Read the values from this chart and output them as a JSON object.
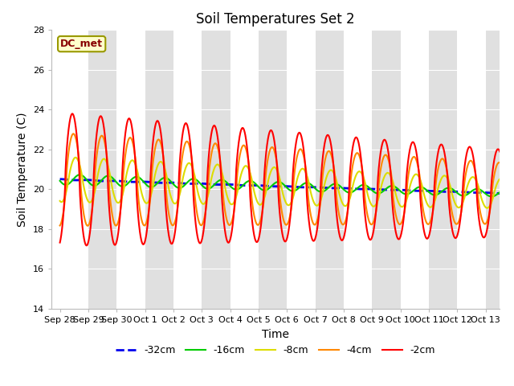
{
  "title": "Soil Temperatures Set 2",
  "xlabel": "Time",
  "ylabel": "Soil Temperature (C)",
  "ylim": [
    14,
    28
  ],
  "background_color": "#ffffff",
  "tick_labels": [
    "Sep 28",
    "Sep 29",
    "Sep 30",
    "Oct 1",
    "Oct 2",
    "Oct 3",
    "Oct 4",
    "Oct 5",
    "Oct 6",
    "Oct 7",
    "Oct 8",
    "Oct 9",
    "Oct 10",
    "Oct 11",
    "Oct 12",
    "Oct 13"
  ],
  "tick_positions": [
    0,
    1,
    2,
    3,
    4,
    5,
    6,
    7,
    8,
    9,
    10,
    11,
    12,
    13,
    14,
    15
  ],
  "series": [
    {
      "label": "-32cm",
      "color": "#0000ee",
      "linestyle": "--",
      "linewidth": 2.0,
      "depth": 32
    },
    {
      "label": "-16cm",
      "color": "#00cc00",
      "linestyle": "-",
      "linewidth": 1.5,
      "depth": 16
    },
    {
      "label": "-8cm",
      "color": "#dddd00",
      "linestyle": "-",
      "linewidth": 1.5,
      "depth": 8
    },
    {
      "label": "-4cm",
      "color": "#ff8800",
      "linestyle": "-",
      "linewidth": 1.5,
      "depth": 4
    },
    {
      "label": "-2cm",
      "color": "#ff0000",
      "linestyle": "-",
      "linewidth": 1.5,
      "depth": 2
    }
  ],
  "annotation_label": "DC_met",
  "yticks": [
    14,
    16,
    18,
    20,
    22,
    24,
    26,
    28
  ],
  "title_fontsize": 12,
  "axis_label_fontsize": 10,
  "tick_fontsize": 8,
  "legend_fontsize": 9,
  "band_colors": [
    "#ffffff",
    "#e0e0e0"
  ],
  "grid_line_color": "#ffffff"
}
